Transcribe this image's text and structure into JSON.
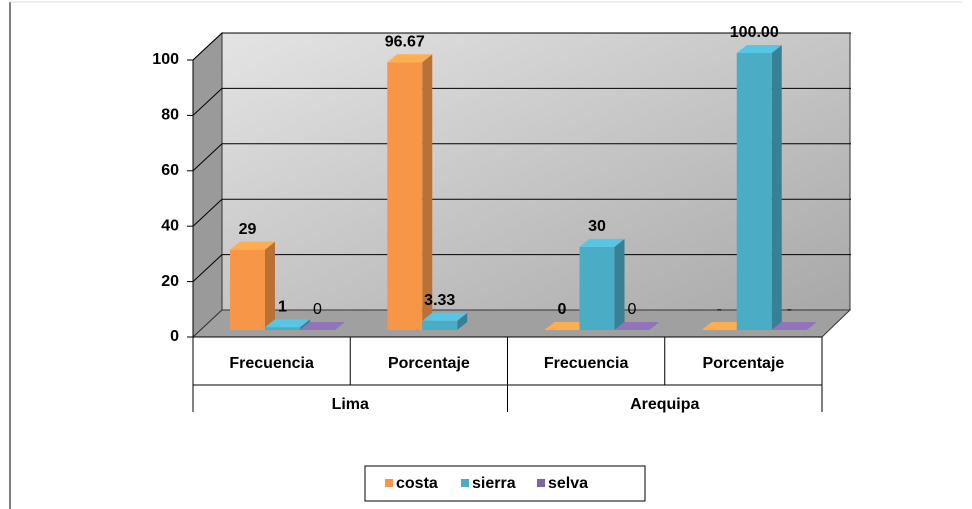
{
  "chart_data": {
    "type": "bar3d",
    "categories": [
      "Frecuencia",
      "Porcentaje",
      "Frecuencia",
      "Porcentaje"
    ],
    "groups": [
      "Lima",
      "Arequipa"
    ],
    "series": [
      {
        "name": "costa",
        "color": "#f79646",
        "values": [
          29,
          96.67,
          0,
          0
        ],
        "value_labels": [
          "29",
          "96.67",
          "0",
          "-"
        ]
      },
      {
        "name": "sierra",
        "color": "#4bacc6",
        "values": [
          1,
          3.33,
          30,
          100
        ],
        "value_labels": [
          "1",
          "3.33",
          "30",
          "100.00"
        ]
      },
      {
        "name": "selva",
        "color": "#8064a2",
        "values": [
          0,
          null,
          0,
          0
        ],
        "value_labels": [
          "0",
          null,
          "0",
          "-"
        ]
      }
    ],
    "ylim": [
      0,
      100
    ],
    "yticks": [
      0,
      20,
      40,
      60,
      80,
      100
    ],
    "grid": true,
    "legend": "bottom"
  }
}
